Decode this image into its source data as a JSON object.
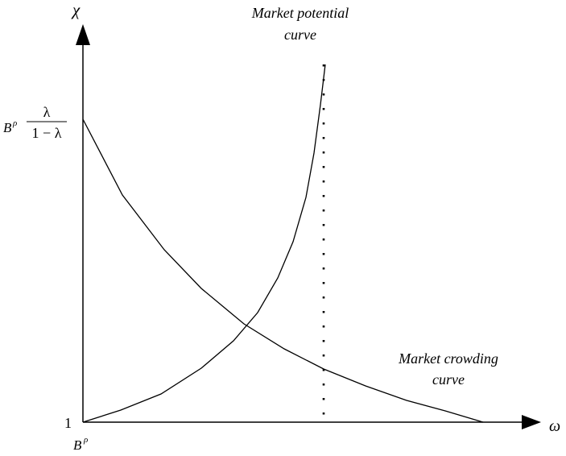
{
  "axes": {
    "y_label": "χ",
    "x_label": "ω",
    "y_intercept_label": "1",
    "x_origin_base": "B",
    "x_origin_exponent": "ρ"
  },
  "y_top_tick": {
    "base": "B",
    "exponent": "ρ",
    "numerator": "λ",
    "denominator": "1 − λ"
  },
  "curves": {
    "market_potential": {
      "line1": "Market potential",
      "line2": "curve"
    },
    "market_crowding": {
      "line1": "Market crowding",
      "line2": "curve"
    }
  },
  "colors": {
    "ink": "#000000",
    "background": "#ffffff"
  }
}
